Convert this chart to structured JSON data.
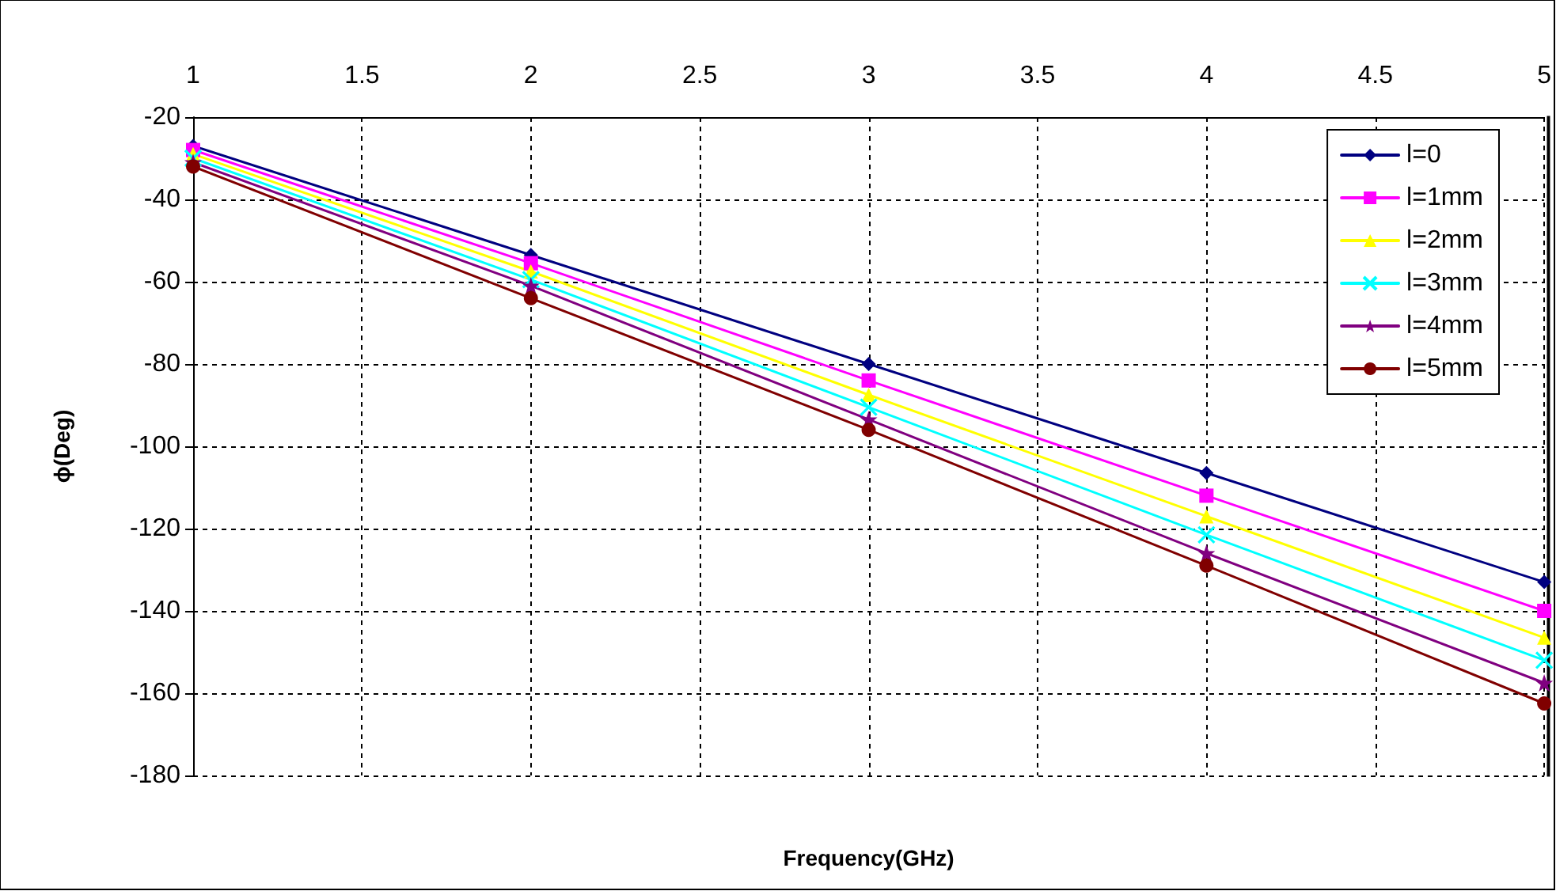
{
  "chart_data": {
    "type": "line",
    "xlabel": "Frequency(GHz)",
    "ylabel": "ϕ(Deg)",
    "x": [
      1,
      2,
      3,
      4,
      5
    ],
    "series": [
      {
        "name": "l=0",
        "color": "#000080",
        "marker": "diamond",
        "values": [
          -27,
          -53.5,
          -80,
          -106.5,
          -133
        ]
      },
      {
        "name": "l=1mm",
        "color": "#ff00ff",
        "marker": "square",
        "values": [
          -28,
          -55.5,
          -84,
          -112,
          -140
        ]
      },
      {
        "name": "l=2mm",
        "color": "#ffff00",
        "marker": "triangle",
        "values": [
          -29,
          -57.5,
          -87.5,
          -117,
          -146.5
        ]
      },
      {
        "name": "l=3mm",
        "color": "#00ffff",
        "marker": "cross",
        "values": [
          -30,
          -59.5,
          -90.5,
          -121.5,
          -152
        ]
      },
      {
        "name": "l=4mm",
        "color": "#800080",
        "marker": "star",
        "values": [
          -31,
          -61,
          -93.5,
          -126,
          -157.5
        ]
      },
      {
        "name": "l=5mm",
        "color": "#800000",
        "marker": "circle",
        "values": [
          -32,
          -64,
          -96,
          -129,
          -162.5
        ]
      }
    ],
    "xlim": [
      1,
      5
    ],
    "xticks": [
      1,
      1.5,
      2,
      2.5,
      3,
      3.5,
      4,
      4.5,
      5
    ],
    "ylim": [
      -180,
      -20
    ],
    "yticks": [
      -20,
      -40,
      -60,
      -80,
      -100,
      -120,
      -140,
      -160,
      -180
    ],
    "grid": true,
    "legend": "top right",
    "line_style": "solid"
  }
}
